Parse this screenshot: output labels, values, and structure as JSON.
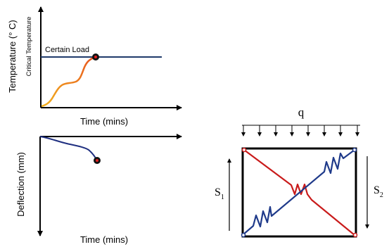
{
  "temperature_plot": {
    "ylabel": "Temperature (° C)",
    "ylabel_secondary": "Critical Temperature",
    "xlabel": "Time (mins)",
    "annotation": "Certain Load"
  },
  "deflection_plot": {
    "ylabel": "Deflection (mm)",
    "xlabel": "Time (mins)"
  },
  "frame_model": {
    "load_label": "q",
    "left_label": "S",
    "left_subscript": "1",
    "right_label": "S",
    "right_subscript": "2"
  },
  "colors": {
    "axis": "#000000",
    "critical_line": "#1f3a6b",
    "temp_curve_start": "#f2b21f",
    "temp_curve_end": "#e8541e",
    "deflection_curve": "#1f2f80",
    "marker_fill": "#111111",
    "marker_center": "#e02020",
    "frame": "#000000",
    "spring_blue": "#1f3a8a",
    "spring_red": "#c91b1b"
  }
}
